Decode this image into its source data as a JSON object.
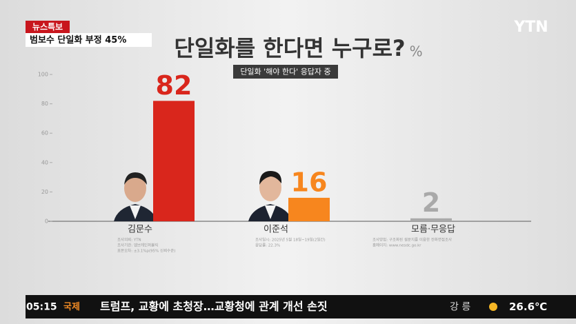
{
  "broadcast": {
    "tag": "뉴스특보",
    "headline": "범보수 단일화 부정 45%",
    "logo": "YTN",
    "ticker": {
      "time": "05:15",
      "section": "국제",
      "text": "트럼프, 교황에 초청장…교황청에 관계 개선 손짓",
      "city": "강 릉",
      "temperature": "26.6℃"
    },
    "footnotes": [
      [
        "조사의뢰: YTN",
        "조사기관: 엠브레인퍼블릭",
        "표본오차: ±3.1%p(95% 신뢰수준)"
      ],
      [
        "조사일시: 2025년 5월 18일~19일(2일간)",
        "응답률: 22.3%"
      ],
      [
        "조사방법: 구조화된 설문지를 이용한 전화면접조사",
        "홈페이지: www.nesdc.go.kr"
      ]
    ]
  },
  "chart_data": {
    "type": "bar",
    "title": "단일화를 한다면 누구로?",
    "unit": "%",
    "subtitle": "단일화 '해야 한다' 응답자 중",
    "categories": [
      "김문수",
      "이준석",
      "모름·무응답"
    ],
    "values": [
      82,
      16,
      2
    ],
    "colors": [
      "#d9261c",
      "#f7861e",
      "#a9a9a9"
    ],
    "ylim": [
      0,
      100
    ],
    "yticks": [
      0,
      20,
      40,
      60,
      80,
      100
    ],
    "grid": false
  }
}
